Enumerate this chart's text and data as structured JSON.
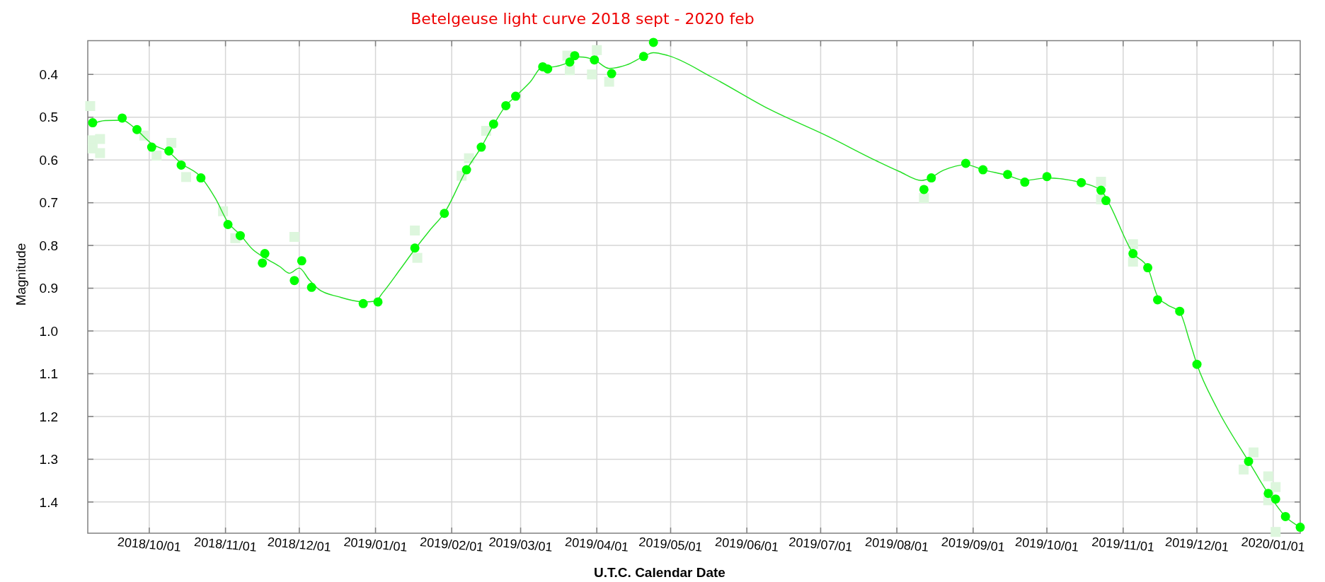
{
  "chart_data": {
    "type": "scatter",
    "title": "Betelgeuse light curve 2018 sept - 2020 feb",
    "xlabel": "U.T.C. Calendar Date",
    "ylabel": "Magnitude",
    "xlim": [
      "2018-09-06",
      "2020-01-12"
    ],
    "ylim": [
      1.473,
      0.321
    ],
    "xticks": [
      {
        "value": "2018-10-01",
        "label": "2018/10/01"
      },
      {
        "value": "2018-11-01",
        "label": "2018/11/01"
      },
      {
        "value": "2018-12-01",
        "label": "2018/12/01"
      },
      {
        "value": "2019-01-01",
        "label": "2019/01/01"
      },
      {
        "value": "2019-02-01",
        "label": "2019/02/01"
      },
      {
        "value": "2019-03-01",
        "label": "2019/03/01"
      },
      {
        "value": "2019-04-01",
        "label": "2019/04/01"
      },
      {
        "value": "2019-05-01",
        "label": "2019/05/01"
      },
      {
        "value": "2019-06-01",
        "label": "2019/06/01"
      },
      {
        "value": "2019-07-01",
        "label": "2019/07/01"
      },
      {
        "value": "2019-08-01",
        "label": "2019/08/01"
      },
      {
        "value": "2019-09-01",
        "label": "2019/09/01"
      },
      {
        "value": "2019-10-01",
        "label": "2019/10/01"
      },
      {
        "value": "2019-11-01",
        "label": "2019/11/01"
      },
      {
        "value": "2019-12-01",
        "label": "2019/12/01"
      },
      {
        "value": "2020-01-01",
        "label": "2020/01/01"
      }
    ],
    "yticks": [
      0.4,
      0.5,
      0.6,
      0.7,
      0.8,
      0.9,
      {
        "value": 1,
        "label": "1.0"
      },
      1.1,
      1.2,
      1.3,
      1.4
    ],
    "grid": true,
    "series": [
      {
        "type": "scatter",
        "marker": "square",
        "color": "#ddf6dd",
        "x": [
          "2018-09-07",
          "2018-09-08",
          "2018-09-11",
          "2018-09-08",
          "2018-09-11",
          "2018-09-29",
          "2018-10-04",
          "2018-10-10",
          "2018-10-16",
          "2018-10-31",
          "2018-11-05",
          "2018-11-29",
          "2019-01-17",
          "2019-01-18",
          "2019-02-05",
          "2019-02-08",
          "2019-02-15",
          "2019-03-20",
          "2019-03-21",
          "2019-04-01",
          "2019-03-30",
          "2019-04-06",
          "2019-08-12",
          "2019-10-23",
          "2019-10-23",
          "2019-11-05",
          "2019-11-05",
          "2019-12-24",
          "2019-12-20",
          "2019-12-30",
          "2020-01-02",
          "2019-12-30",
          "2020-01-02"
        ],
        "values": [
          0.474,
          0.554,
          0.551,
          0.573,
          0.584,
          0.543,
          0.59,
          0.56,
          0.64,
          0.72,
          0.783,
          0.78,
          0.765,
          0.829,
          0.637,
          0.596,
          0.532,
          0.356,
          0.39,
          0.343,
          0.4,
          0.417,
          0.689,
          0.651,
          0.692,
          0.797,
          0.838,
          1.284,
          1.324,
          1.34,
          1.365,
          1.396,
          1.47
        ]
      },
      {
        "type": "line",
        "marker": "none",
        "color": "#22e022",
        "x": [
          "2018-09-08",
          "2018-09-13",
          "2018-09-20",
          "2018-09-25",
          "2018-10-02",
          "2018-10-09",
          "2018-10-14",
          "2018-10-22",
          "2018-10-28",
          "2018-11-02",
          "2018-11-07",
          "2018-11-12",
          "2018-11-17",
          "2018-11-23",
          "2018-11-27",
          "2018-12-01",
          "2018-12-05",
          "2018-12-09",
          "2018-12-17",
          "2018-12-27",
          "2019-01-01",
          "2019-01-04",
          "2019-01-11",
          "2019-01-17",
          "2019-01-23",
          "2019-01-29",
          "2019-02-07",
          "2019-02-13",
          "2019-02-18",
          "2019-02-23",
          "2019-02-27",
          "2019-03-05",
          "2019-03-10",
          "2019-03-13",
          "2019-03-21",
          "2019-03-25",
          "2019-03-31",
          "2019-04-06",
          "2019-04-13",
          "2019-04-20",
          "2019-04-24",
          "2019-04-30",
          "2019-05-18",
          "2019-06-10",
          "2019-07-04",
          "2019-07-24",
          "2019-08-02",
          "2019-08-11",
          "2019-08-13",
          "2019-08-20",
          "2019-08-29",
          "2019-09-05",
          "2019-09-15",
          "2019-09-22",
          "2019-10-01",
          "2019-10-15",
          "2019-10-23",
          "2019-10-26",
          "2019-11-05",
          "2019-11-11",
          "2019-11-15",
          "2019-11-19",
          "2019-11-24",
          "2019-11-28",
          "2019-12-01",
          "2019-12-09",
          "2019-12-22",
          "2019-12-30",
          "2020-01-06",
          "2020-01-12"
        ],
        "values": [
          0.515,
          0.508,
          0.507,
          0.525,
          0.562,
          0.582,
          0.608,
          0.64,
          0.691,
          0.746,
          0.775,
          0.809,
          0.829,
          0.849,
          0.865,
          0.853,
          0.88,
          0.903,
          0.92,
          0.932,
          0.93,
          0.91,
          0.856,
          0.809,
          0.765,
          0.724,
          0.623,
          0.57,
          0.518,
          0.473,
          0.451,
          0.417,
          0.382,
          0.383,
          0.371,
          0.359,
          0.366,
          0.386,
          0.378,
          0.358,
          0.349,
          0.356,
          0.407,
          0.481,
          0.545,
          0.603,
          0.627,
          0.648,
          0.646,
          0.624,
          0.611,
          0.623,
          0.636,
          0.648,
          0.642,
          0.653,
          0.671,
          0.699,
          0.818,
          0.852,
          0.919,
          0.939,
          0.956,
          1.023,
          1.078,
          1.179,
          1.305,
          1.38,
          1.434,
          1.459
        ]
      },
      {
        "type": "scatter",
        "marker": "circle",
        "color": "#00ff00",
        "x": [
          "2018-09-08",
          "2018-09-20",
          "2018-09-26",
          "2018-10-02",
          "2018-10-09",
          "2018-10-14",
          "2018-10-22",
          "2018-11-02",
          "2018-11-07",
          "2018-11-16",
          "2018-11-17",
          "2018-11-29",
          "2018-12-02",
          "2018-12-06",
          "2018-12-27",
          "2019-01-02",
          "2019-01-17",
          "2019-01-29",
          "2019-02-07",
          "2019-02-13",
          "2019-02-18",
          "2019-02-23",
          "2019-02-27",
          "2019-03-10",
          "2019-03-12",
          "2019-03-21",
          "2019-03-23",
          "2019-03-31",
          "2019-04-07",
          "2019-04-20",
          "2019-04-24",
          "2019-08-12",
          "2019-08-15",
          "2019-08-29",
          "2019-09-05",
          "2019-09-15",
          "2019-09-22",
          "2019-10-01",
          "2019-10-15",
          "2019-10-23",
          "2019-10-25",
          "2019-11-05",
          "2019-11-11",
          "2019-11-15",
          "2019-11-24",
          "2019-12-01",
          "2019-12-22",
          "2019-12-30",
          "2020-01-02",
          "2020-01-06",
          "2020-01-12"
        ],
        "values": [
          0.513,
          0.502,
          0.529,
          0.57,
          0.579,
          0.612,
          0.642,
          0.751,
          0.777,
          0.841,
          0.819,
          0.882,
          0.836,
          0.898,
          0.936,
          0.932,
          0.806,
          0.725,
          0.623,
          0.57,
          0.516,
          0.473,
          0.451,
          0.382,
          0.387,
          0.371,
          0.356,
          0.366,
          0.398,
          0.358,
          0.325,
          0.669,
          0.642,
          0.608,
          0.623,
          0.634,
          0.652,
          0.639,
          0.653,
          0.671,
          0.695,
          0.819,
          0.852,
          0.927,
          0.954,
          1.078,
          1.305,
          1.38,
          1.393,
          1.434,
          1.459
        ]
      }
    ]
  }
}
